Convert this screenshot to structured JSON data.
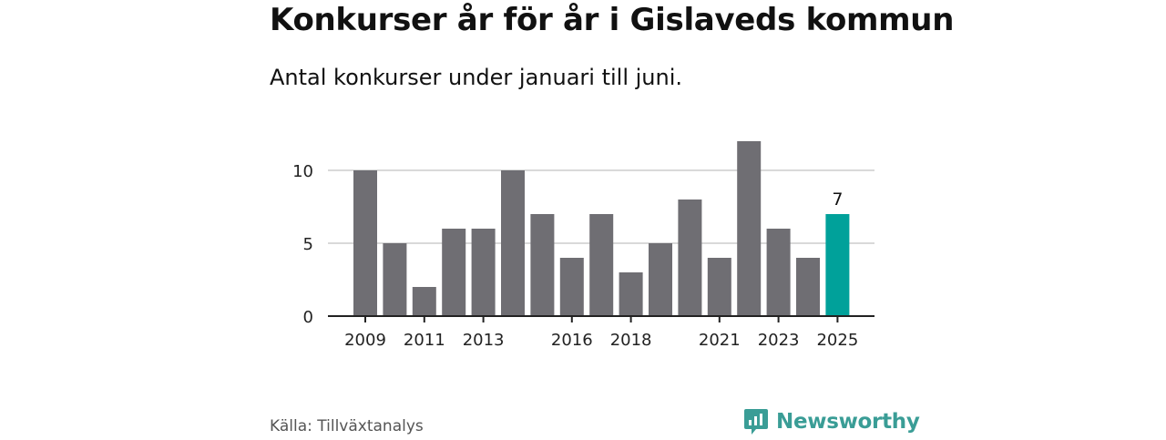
{
  "header": {
    "title": "Konkurser år för år i Gislaveds kommun",
    "subtitle": "Antal konkurser under januari till juni."
  },
  "footer": {
    "source": "Källa: Tillväxtanalys",
    "brand": "Newsworthy",
    "brand_icon": "newsworthy-logo-icon"
  },
  "colors": {
    "bar": "#6f6e73",
    "highlight": "#00a19a",
    "grid": "#d9d9d9",
    "axis": "#222222",
    "brand": "#3a9d96"
  },
  "chart_data": {
    "type": "bar",
    "categories": [
      "2009",
      "2010",
      "2011",
      "2012",
      "2013",
      "2014",
      "2015",
      "2016",
      "2017",
      "2018",
      "2019",
      "2020",
      "2021",
      "2022",
      "2023",
      "2024",
      "2025"
    ],
    "values": [
      10,
      5,
      2,
      6,
      6,
      10,
      7,
      4,
      7,
      3,
      5,
      8,
      4,
      12,
      6,
      4,
      7
    ],
    "highlight_index": 16,
    "highlight_label": "7",
    "x_tick_labels": [
      "2009",
      "2011",
      "2013",
      "2016",
      "2018",
      "2021",
      "2023",
      "2025"
    ],
    "y_ticks": [
      0,
      5,
      10
    ],
    "ylim": [
      0,
      12
    ],
    "grid": true,
    "title": "Konkurser år för år i Gislaveds kommun",
    "subtitle": "Antal konkurser under januari till juni.",
    "xlabel": "",
    "ylabel": ""
  }
}
